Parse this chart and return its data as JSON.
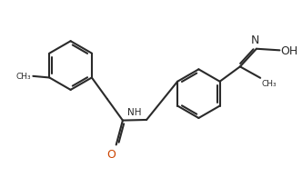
{
  "bg_color": "#ffffff",
  "line_color": "#2a2a2a",
  "o_color": "#cc4400",
  "lw": 1.5,
  "fig_width": 3.32,
  "fig_height": 2.07,
  "dpi": 100,
  "xlim": [
    0,
    10
  ],
  "ylim": [
    0,
    6.24
  ]
}
